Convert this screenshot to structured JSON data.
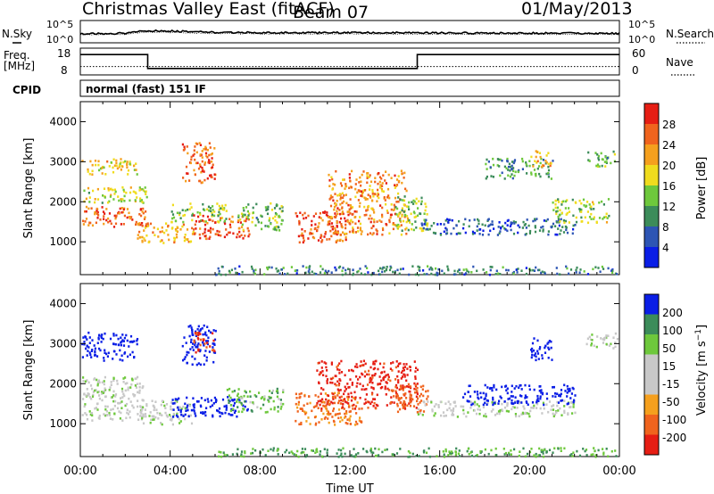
{
  "header": {
    "title": "Christmas Valley East (fitACF)",
    "beam": "Beam 07",
    "date": "01/May/2013"
  },
  "top_panels": {
    "nsky_label": "N.Sky",
    "nsearch_label": "N.Search",
    "nsky_ticks": [
      "10^5",
      "10^0"
    ],
    "nsearch_ticks": [
      "10^5",
      "10^0"
    ],
    "freq_label_1": "Freq.",
    "freq_label_2": "[MHz]",
    "freq_ticks": [
      "18",
      "8"
    ],
    "nave_label": "Nave",
    "nave_ticks": [
      "60",
      "0"
    ],
    "cpid_label": "CPID",
    "cpid_text": "normal (fast) 151 IF"
  },
  "colors": {
    "power_scale": [
      "#0a1ee6",
      "#2d55b4",
      "#3c8c5a",
      "#6ec83c",
      "#f0dc1e",
      "#f5a01e",
      "#f0641e",
      "#e61e14"
    ],
    "velocity_scale": [
      "#e61e14",
      "#f0641e",
      "#f5a01e",
      "#c8c8c8",
      "#c8c8c8",
      "#6ec83c",
      "#3c8c5a",
      "#0a1ee6"
    ]
  },
  "chart_data": [
    {
      "type": "line",
      "panel": "N.Sky / N.Search",
      "x": [
        "00:00",
        "02:00",
        "03:00",
        "04:00",
        "06:00",
        "08:00",
        "10:00",
        "12:00",
        "14:00",
        "16:00",
        "18:00",
        "20:00",
        "22:00",
        "24:00"
      ],
      "series": [
        {
          "name": "N.Sky",
          "values": [
            120,
            140,
            800,
            600,
            250,
            220,
            200,
            210,
            190,
            180,
            170,
            160,
            150,
            140
          ]
        },
        {
          "name": "N.Search",
          "values": [
            60,
            70,
            300,
            250,
            120,
            110,
            100,
            105,
            95,
            90,
            85,
            80,
            75,
            70
          ]
        }
      ]
    },
    {
      "type": "line",
      "panel": "Freq. / Nave",
      "ylim_freq": [
        8,
        18
      ],
      "ylim_nave": [
        0,
        60
      ],
      "x": [
        "00:00",
        "03:00",
        "03:01",
        "15:00",
        "15:01",
        "24:00"
      ],
      "series": [
        {
          "name": "Freq.",
          "values": [
            16,
            16,
            10,
            10,
            16,
            16
          ]
        },
        {
          "name": "Nave",
          "values": [
            20,
            20,
            20,
            20,
            20,
            20
          ]
        }
      ]
    },
    {
      "type": "heatmap",
      "panel": "Power",
      "xlabel": "Time UT",
      "ylabel": "Slant Range [km]",
      "xticks": [
        "00:00",
        "04:00",
        "08:00",
        "12:00",
        "16:00",
        "20:00",
        "00:00"
      ],
      "yticks": [
        "1000",
        "2000",
        "3000",
        "4000"
      ],
      "xlim": [
        0,
        24
      ],
      "ylim": [
        180,
        4500
      ],
      "colorbar_label": "Power [dB]",
      "colorbar_ticks": [
        "28",
        "24",
        "20",
        "16",
        "12",
        "8",
        "4"
      ],
      "colorbar_range": [
        0,
        30
      ],
      "regions": [
        {
          "t": [
            0.0,
            3.0
          ],
          "r": [
            1400,
            1900
          ],
          "v": 24
        },
        {
          "t": [
            0.0,
            3.0
          ],
          "r": [
            2000,
            2400
          ],
          "v": 16
        },
        {
          "t": [
            0.0,
            2.5
          ],
          "r": [
            2700,
            3100
          ],
          "v": 18
        },
        {
          "t": [
            2.5,
            5.0
          ],
          "r": [
            1000,
            1500
          ],
          "v": 20
        },
        {
          "t": [
            4.0,
            6.5
          ],
          "r": [
            1500,
            2000
          ],
          "v": 14
        },
        {
          "t": [
            4.5,
            6.0
          ],
          "r": [
            2500,
            3500
          ],
          "v": 24
        },
        {
          "t": [
            5.0,
            7.5
          ],
          "r": [
            1100,
            1700
          ],
          "v": 26
        },
        {
          "t": [
            7.0,
            9.0
          ],
          "r": [
            1300,
            2000
          ],
          "v": 12
        },
        {
          "t": [
            9.5,
            12.0
          ],
          "r": [
            1000,
            1800
          ],
          "v": 26
        },
        {
          "t": [
            11.0,
            14.5
          ],
          "r": [
            1200,
            2800
          ],
          "v": 22
        },
        {
          "t": [
            14.0,
            15.5
          ],
          "r": [
            1300,
            2200
          ],
          "v": 14
        },
        {
          "t": [
            15.0,
            22.0
          ],
          "r": [
            1200,
            1600
          ],
          "v": 6
        },
        {
          "t": [
            18.0,
            21.0
          ],
          "r": [
            2600,
            3100
          ],
          "v": 10
        },
        {
          "t": [
            20.0,
            21.0
          ],
          "r": [
            2900,
            3300
          ],
          "v": 20
        },
        {
          "t": [
            21.0,
            23.5
          ],
          "r": [
            1500,
            2100
          ],
          "v": 14
        },
        {
          "t": [
            22.5,
            24.0
          ],
          "r": [
            2900,
            3300
          ],
          "v": 12
        },
        {
          "t": [
            6.0,
            24.0
          ],
          "r": [
            200,
            420
          ],
          "v": 8
        }
      ]
    },
    {
      "type": "heatmap",
      "panel": "Velocity",
      "xlabel": "Time UT",
      "ylabel": "Slant Range [km]",
      "xticks": [
        "00:00",
        "04:00",
        "08:00",
        "12:00",
        "16:00",
        "20:00",
        "00:00"
      ],
      "yticks": [
        "1000",
        "2000",
        "3000",
        "4000"
      ],
      "xlim": [
        0,
        24
      ],
      "ylim": [
        180,
        4500
      ],
      "colorbar_label": "Velocity [m s^-1]",
      "colorbar_ticks": [
        "200",
        "100",
        "50",
        "15",
        "-15",
        "-50",
        "-100",
        "-200"
      ],
      "colorbar_range": [
        -250,
        250
      ],
      "regions": [
        {
          "t": [
            0.0,
            2.8
          ],
          "r": [
            1100,
            2200
          ],
          "v": 0
        },
        {
          "t": [
            0.0,
            2.5
          ],
          "r": [
            2600,
            3300
          ],
          "v": 200
        },
        {
          "t": [
            2.5,
            5.0
          ],
          "r": [
            1000,
            1600
          ],
          "v": 0
        },
        {
          "t": [
            4.0,
            7.5
          ],
          "r": [
            1200,
            1700
          ],
          "v": 220
        },
        {
          "t": [
            4.5,
            6.0
          ],
          "r": [
            2500,
            3500
          ],
          "v": 180
        },
        {
          "t": [
            5.0,
            6.0
          ],
          "r": [
            2800,
            3300
          ],
          "v": -200
        },
        {
          "t": [
            6.5,
            9.0
          ],
          "r": [
            1300,
            1900
          ],
          "v": 40
        },
        {
          "t": [
            9.5,
            12.5
          ],
          "r": [
            1000,
            1800
          ],
          "v": -110
        },
        {
          "t": [
            10.5,
            15.0
          ],
          "r": [
            1400,
            2600
          ],
          "v": -220
        },
        {
          "t": [
            14.0,
            15.5
          ],
          "r": [
            1300,
            2000
          ],
          "v": -150
        },
        {
          "t": [
            15.0,
            22.0
          ],
          "r": [
            1200,
            1600
          ],
          "v": 0
        },
        {
          "t": [
            17.0,
            22.0
          ],
          "r": [
            1500,
            2000
          ],
          "v": 190
        },
        {
          "t": [
            20.0,
            21.0
          ],
          "r": [
            2600,
            3200
          ],
          "v": 200
        },
        {
          "t": [
            22.5,
            24.0
          ],
          "r": [
            2900,
            3300
          ],
          "v": 0
        },
        {
          "t": [
            6.0,
            24.0
          ],
          "r": [
            200,
            420
          ],
          "v": 50
        }
      ]
    }
  ]
}
